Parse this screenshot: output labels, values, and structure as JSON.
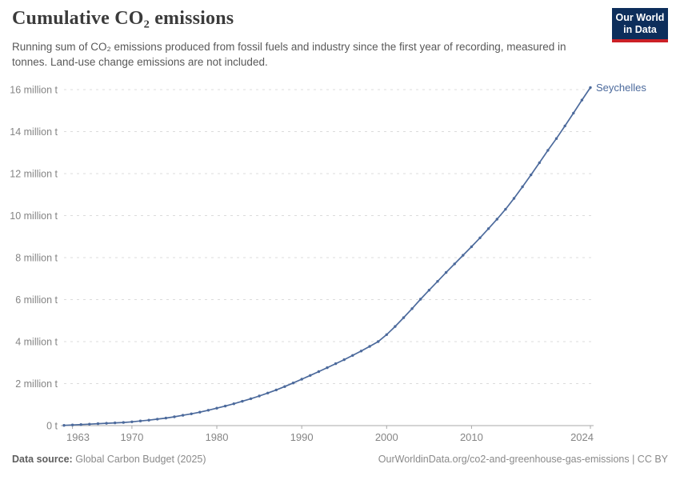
{
  "header": {
    "title": "Cumulative CO₂ emissions",
    "subtitle": "Running sum of CO₂ emissions produced from fossil fuels and industry since the first year of recording, measured in tonnes. Land-use change emissions are not included.",
    "logo": {
      "line1": "Our World",
      "line2": "in Data",
      "bg_color": "#0d2e5b",
      "accent_color": "#cb2026"
    }
  },
  "chart_data": {
    "type": "line",
    "title": "Cumulative CO₂ emissions",
    "entity_end_label": "Seychelles",
    "unit": "tonnes",
    "grid": "horizontal-dashed",
    "legend_position": "end-of-line-label",
    "x": [
      1962,
      1963,
      1964,
      1965,
      1966,
      1967,
      1968,
      1969,
      1970,
      1971,
      1972,
      1973,
      1974,
      1975,
      1976,
      1977,
      1978,
      1979,
      1980,
      1981,
      1982,
      1983,
      1984,
      1985,
      1986,
      1987,
      1988,
      1989,
      1990,
      1991,
      1992,
      1993,
      1994,
      1995,
      1996,
      1997,
      1998,
      1999,
      2000,
      2001,
      2002,
      2003,
      2004,
      2005,
      2006,
      2007,
      2008,
      2009,
      2010,
      2011,
      2012,
      2013,
      2014,
      2015,
      2016,
      2017,
      2018,
      2019,
      2020,
      2021,
      2022,
      2023,
      2024
    ],
    "series": [
      {
        "name": "Seychelles",
        "color": "#4C6A9C",
        "values_million_t": [
          0.01,
          0.03,
          0.05,
          0.07,
          0.09,
          0.11,
          0.13,
          0.15,
          0.18,
          0.22,
          0.26,
          0.31,
          0.36,
          0.42,
          0.49,
          0.56,
          0.64,
          0.73,
          0.83,
          0.93,
          1.04,
          1.16,
          1.28,
          1.41,
          1.55,
          1.7,
          1.86,
          2.03,
          2.21,
          2.39,
          2.57,
          2.76,
          2.95,
          3.14,
          3.34,
          3.55,
          3.77,
          4.0,
          4.33,
          4.72,
          5.14,
          5.57,
          6.02,
          6.45,
          6.87,
          7.29,
          7.7,
          8.11,
          8.52,
          8.94,
          9.38,
          9.83,
          10.3,
          10.82,
          11.37,
          11.94,
          12.52,
          13.11,
          13.67,
          14.27,
          14.88,
          15.5,
          16.1
        ]
      }
    ],
    "xlim": [
      1962,
      2024
    ],
    "ylim_million_t": [
      0,
      16
    ],
    "xticks": [
      1963,
      1970,
      1980,
      1990,
      2000,
      2010,
      2024
    ],
    "yticks": [
      {
        "v": 0,
        "label": "0 t"
      },
      {
        "v": 2,
        "label": "2 million t"
      },
      {
        "v": 4,
        "label": "4 million t"
      },
      {
        "v": 6,
        "label": "6 million t"
      },
      {
        "v": 8,
        "label": "8 million t"
      },
      {
        "v": 10,
        "label": "10 million t"
      },
      {
        "v": 12,
        "label": "12 million t"
      },
      {
        "v": 14,
        "label": "14 million t"
      },
      {
        "v": 16,
        "label": "16 million t"
      }
    ],
    "colors": {
      "gridline": "#dcdcdc",
      "axis": "#a8a8a8",
      "tick_text": "#858585",
      "line": "#4C6A9C",
      "end_label_text": "#4C6A9C"
    }
  },
  "footer": {
    "source_label": "Data source:",
    "source_value": "Global Carbon Budget (2025)",
    "attribution": "OurWorldinData.org/co2-and-greenhouse-gas-emissions | CC BY"
  }
}
